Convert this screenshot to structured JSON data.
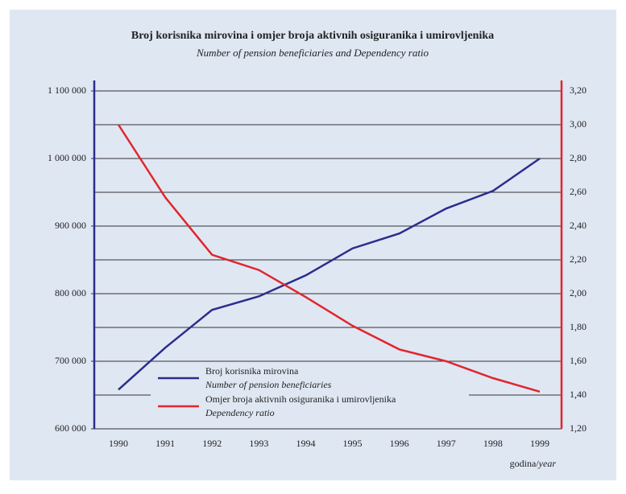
{
  "chart_data": {
    "type": "line",
    "title": "Broj korisnika mirovina i omjer broja aktivnih osiguranika i umirovljenika",
    "subtitle": "Number of pension beneficiaries and Dependency ratio",
    "xlabel": [
      "godina/",
      "year"
    ],
    "categories": [
      "1990",
      "1991",
      "1992",
      "1993",
      "1994",
      "1995",
      "1996",
      "1997",
      "1998",
      "1999"
    ],
    "series": [
      {
        "name": [
          "Broj korisnika mirovina",
          "Number of pension beneficiaries"
        ],
        "color": "#2b2d8c",
        "axis": "y",
        "values": [
          658000,
          720000,
          776000,
          796000,
          827000,
          867000,
          889000,
          926000,
          952000,
          1000000
        ]
      },
      {
        "name": [
          "Omjer broja aktivnih osiguranika i umirovljenika",
          "Dependency ratio"
        ],
        "color": "#e1262c",
        "axis": "y2",
        "values": [
          3.0,
          2.57,
          2.23,
          2.14,
          1.98,
          1.81,
          1.67,
          1.6,
          1.5,
          1.42
        ]
      }
    ],
    "ylim": [
      600000,
      1100000
    ],
    "yticks": [
      {
        "value": 600000,
        "label": "600 000"
      },
      {
        "value": 700000,
        "label": "700 000"
      },
      {
        "value": 800000,
        "label": "800 000"
      },
      {
        "value": 900000,
        "label": "900 000"
      },
      {
        "value": 1000000,
        "label": "1 000 000"
      },
      {
        "value": 1100000,
        "label": "1 100 000"
      }
    ],
    "y2lim": [
      1.2,
      3.2
    ],
    "y2ticks": [
      {
        "value": 1.2,
        "label": "1,20"
      },
      {
        "value": 1.4,
        "label": "1,40"
      },
      {
        "value": 1.6,
        "label": "1,60"
      },
      {
        "value": 1.8,
        "label": "1,80"
      },
      {
        "value": 2.0,
        "label": "2,00"
      },
      {
        "value": 2.2,
        "label": "2,20"
      },
      {
        "value": 2.4,
        "label": "2,40"
      },
      {
        "value": 2.6,
        "label": "2,60"
      },
      {
        "value": 2.8,
        "label": "2,80"
      },
      {
        "value": 3.0,
        "label": "3,00"
      },
      {
        "value": 3.2,
        "label": "3,20"
      }
    ],
    "grid": true
  }
}
